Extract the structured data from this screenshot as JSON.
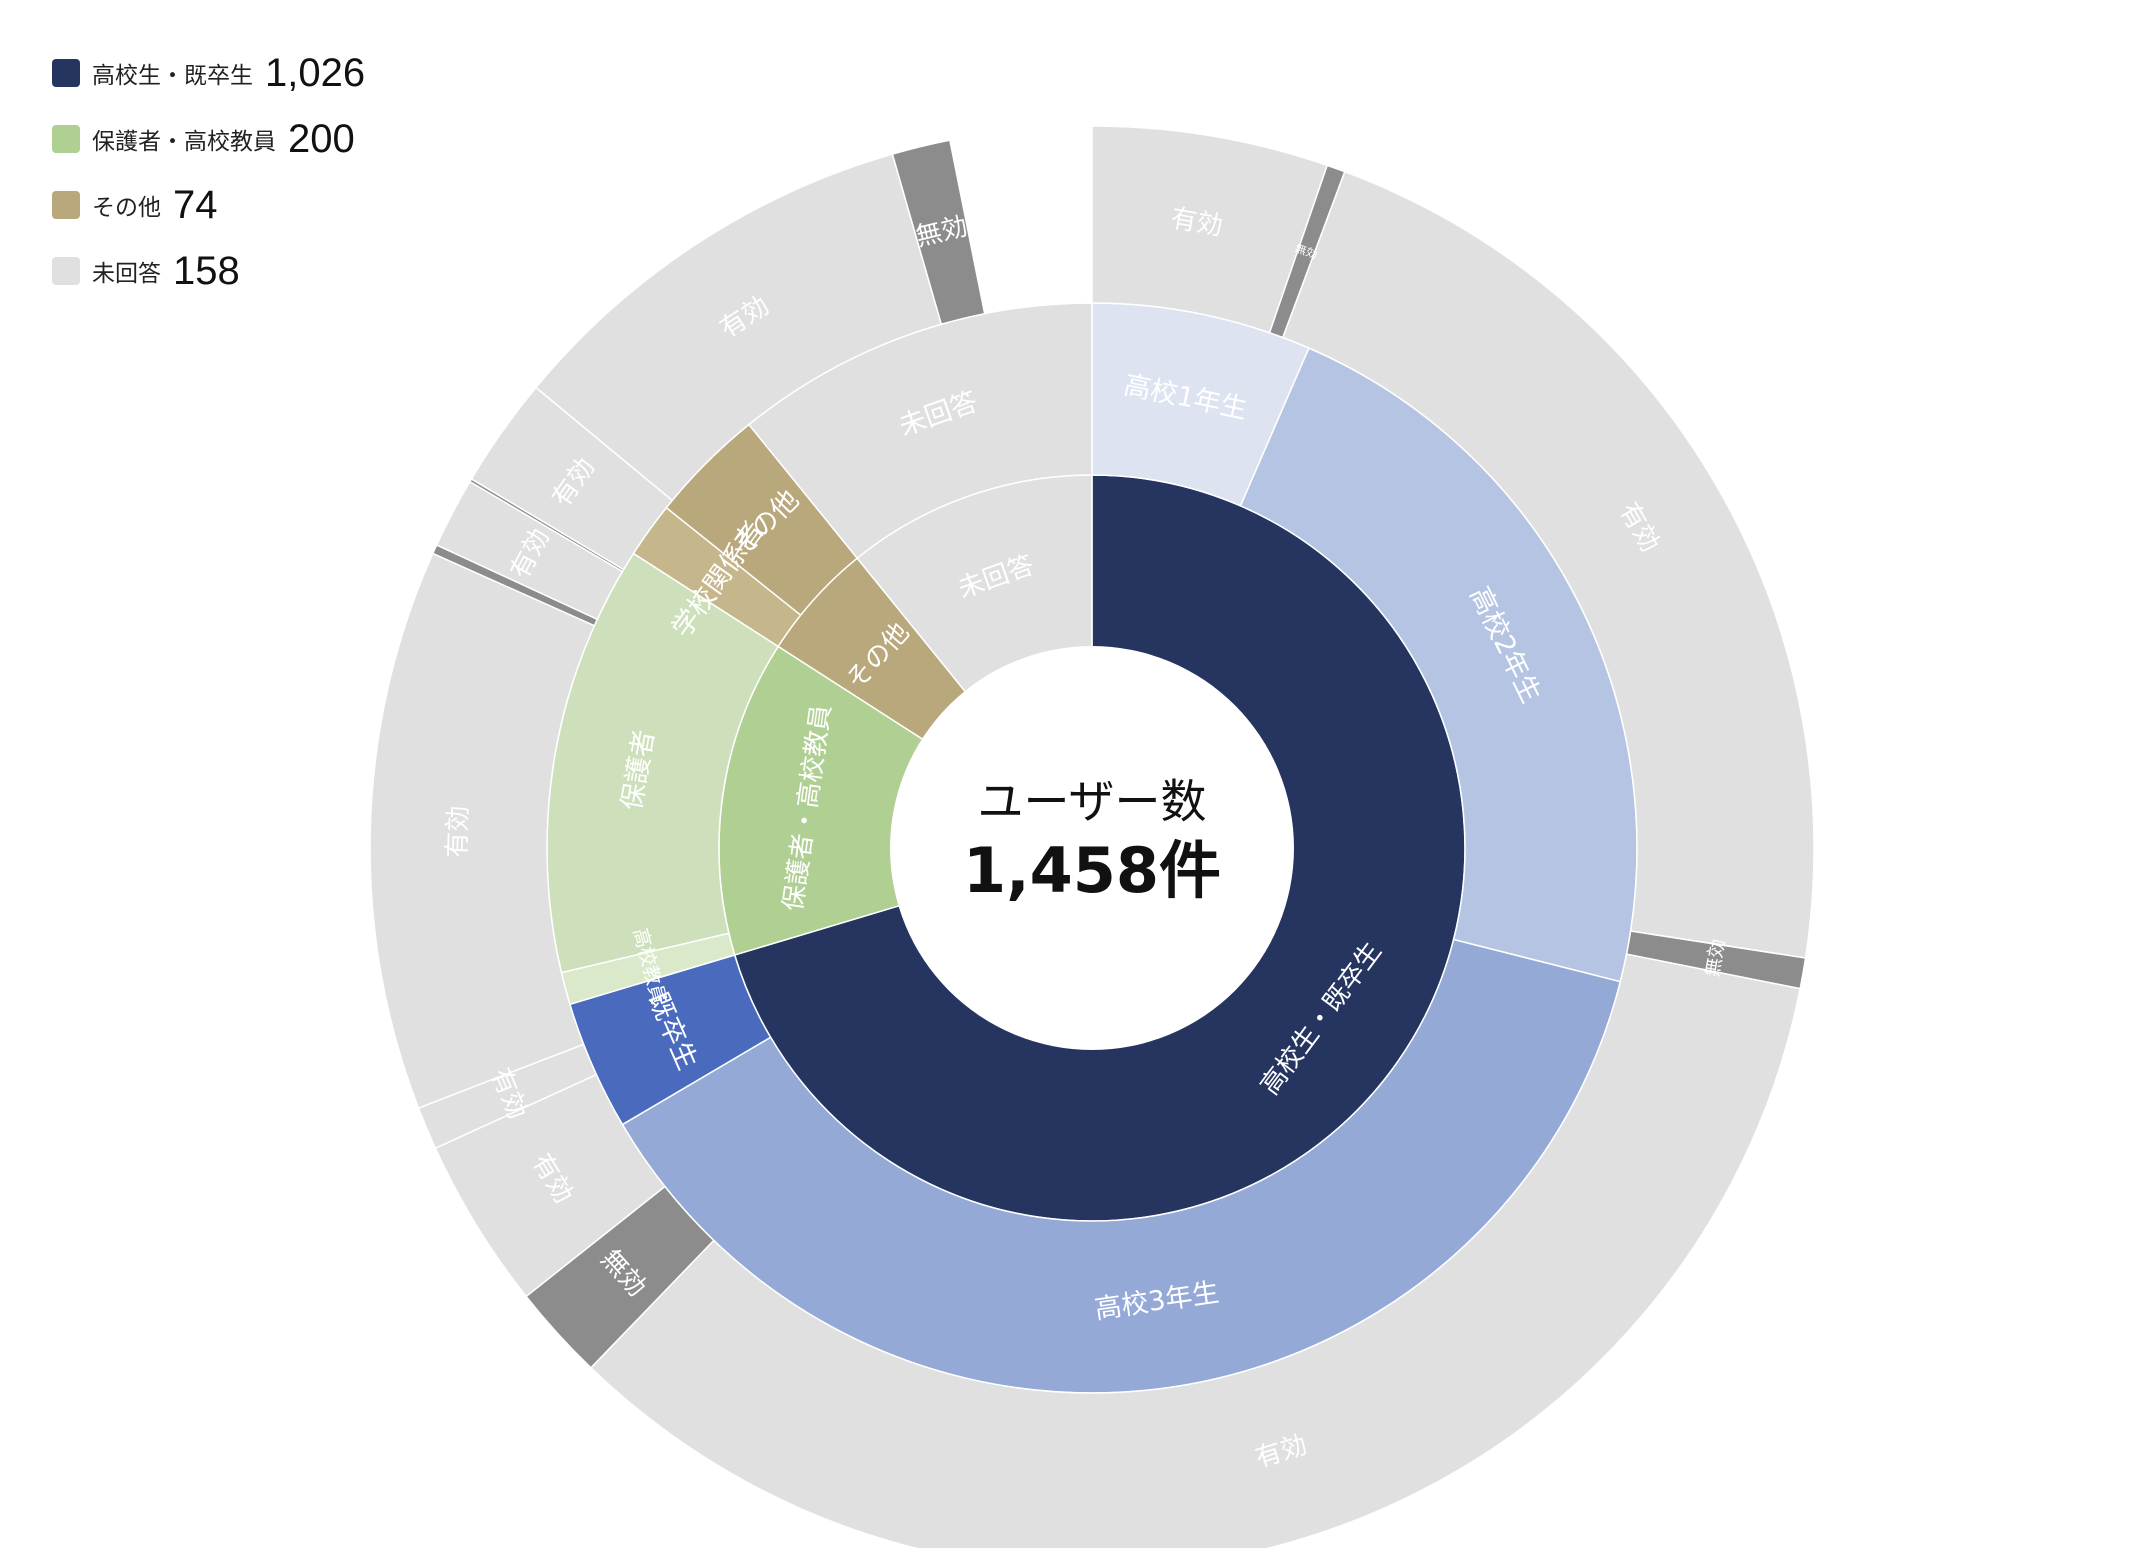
{
  "legend": [
    {
      "label": "高校生・既卒生",
      "value": "1,026",
      "color": "#253560"
    },
    {
      "label": "保護者・高校教員",
      "value": "200",
      "color": "#b0cf93"
    },
    {
      "label": "その他",
      "value": "74",
      "color": "#b8a87c"
    },
    {
      "label": "未回答",
      "value": "158",
      "color": "#e0e0e0"
    }
  ],
  "center": {
    "title": "ユーザー数",
    "total": "1,458件"
  },
  "chart_data": {
    "type": "sunburst",
    "total": 1458,
    "rings": [
      {
        "level": 1,
        "segments": [
          {
            "label": "高校生・既卒生",
            "value": 1026,
            "color": "#253560",
            "text_color": "#ffffff"
          },
          {
            "label": "保護者・高校教員",
            "value": 200,
            "color": "#b0cf93",
            "text_color": "#ffffff"
          },
          {
            "label": "その他",
            "value": 74,
            "color": "#b8a87c",
            "text_color": "#ffffff"
          },
          {
            "label": "未回答",
            "value": 158,
            "color": "#e0e0e0",
            "text_color": "#ffffff"
          }
        ]
      },
      {
        "level": 2,
        "segments": [
          {
            "label": "高校1年生",
            "value": 95,
            "color": "#dde3f1",
            "text_color": "#ffffff"
          },
          {
            "label": "高校2年生",
            "value": 327,
            "color": "#b6c4e3",
            "text_color": "#ffffff"
          },
          {
            "label": "高校3年生",
            "value": 548,
            "color": "#95a9d7",
            "text_color": "#ffffff"
          },
          {
            "label": "既卒生",
            "value": 56,
            "color": "#4a6bbd",
            "text_color": "#ffffff"
          },
          {
            "label": "高校教員",
            "value": 14,
            "color": "#d9e9c9",
            "text_color": "#ffffff"
          },
          {
            "label": "保護者",
            "value": 186,
            "color": "#cde0bb",
            "text_color": "#ffffff"
          },
          {
            "label": "学校関係者",
            "value": 24,
            "color": "#c6b68c",
            "text_color": "#ffffff"
          },
          {
            "label": "その他",
            "value": 50,
            "color": "#b8a87c",
            "text_color": "#ffffff"
          },
          {
            "label": "未回答",
            "value": 158,
            "color": "#e0e0e0",
            "text_color": "#ffffff"
          }
        ]
      },
      {
        "level": 3,
        "segments": [
          {
            "label": "有効",
            "value": 77,
            "color": "#e0e0e0",
            "text_color": "#ffffff"
          },
          {
            "label": "無効",
            "value": 6,
            "color": "#8c8c8c",
            "text_color": "#ffffff"
          },
          {
            "label": "有効",
            "value": 317,
            "color": "#e0e0e0",
            "text_color": "#ffffff"
          },
          {
            "label": "無効",
            "value": 10,
            "color": "#8c8c8c",
            "text_color": "#ffffff"
          },
          {
            "label": "有効",
            "value": 497,
            "color": "#e0e0e0",
            "text_color": "#ffffff"
          },
          {
            "label": "無効",
            "value": 31,
            "color": "#8c8c8c",
            "text_color": "#ffffff"
          },
          {
            "label": "有効",
            "value": 56,
            "color": "#e0e0e0",
            "text_color": "#ffffff"
          },
          {
            "label": "有効",
            "value": 14,
            "color": "#e0e0e0",
            "text_color": "#ffffff"
          },
          {
            "label": "有効",
            "value": 183,
            "color": "#e0e0e0",
            "text_color": "#ffffff"
          },
          {
            "label": "",
            "value": 3,
            "color": "#8c8c8c",
            "text_color": "#ffffff"
          },
          {
            "label": "有効",
            "value": 23,
            "color": "#e0e0e0",
            "text_color": "#ffffff"
          },
          {
            "label": "",
            "value": 1,
            "color": "#8c8c8c",
            "text_color": "#ffffff"
          },
          {
            "label": "有効",
            "value": 36,
            "color": "#e0e0e0",
            "text_color": "#ffffff"
          },
          {
            "label": "有効",
            "value": 139,
            "color": "#e0e0e0",
            "text_color": "#ffffff"
          },
          {
            "label": "無効",
            "value": 19,
            "color": "#8c8c8c",
            "text_color": "#ffffff"
          }
        ]
      }
    ]
  }
}
